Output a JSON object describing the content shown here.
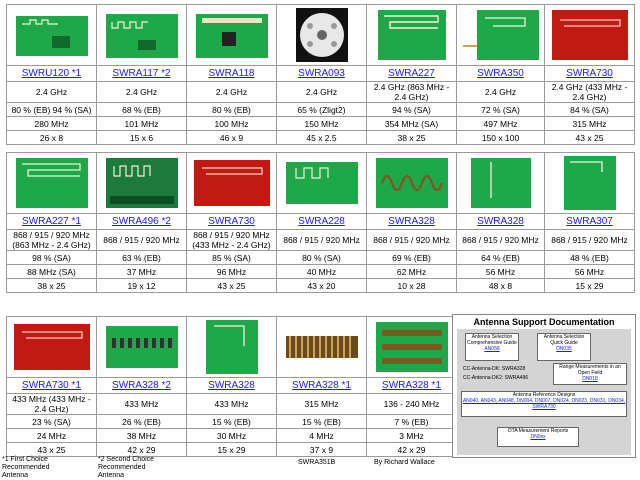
{
  "colors": {
    "pcb_green": "#1fa84a",
    "pcb_red": "#c21a12",
    "link": "#1a1aff"
  },
  "rows": [
    [
      {
        "name": "SWRU120 *1",
        "freq": "2.4 GHz",
        "eff": "80 % (EB) 94 % (SA)",
        "bw": "280 MHz",
        "size": "26 x 8",
        "image": "green-pcb-antenna"
      },
      {
        "name": "SWRA117 *2",
        "freq": "2.4 GHz",
        "eff": "68 % (EB)",
        "bw": "101 MHz",
        "size": "15 x 6",
        "image": "green-pcb-antenna"
      },
      {
        "name": "SWRA118",
        "freq": "2.4 GHz",
        "eff": "80 % (EB)",
        "bw": "100 MHz",
        "size": "46 x 9",
        "image": "green-pcb-antenna"
      },
      {
        "name": "SWRA093",
        "freq": "2.4 GHz",
        "eff": "65 % (Zligt2)",
        "bw": "150 MHz",
        "size": "45 x 2.5",
        "image": "osram-light-board"
      },
      {
        "name": "SWRA227",
        "freq": "2.4 GHz (863 MHz - 2.4 GHz)",
        "eff": "94 % (SA)",
        "bw": "354 MHz (SA)",
        "size": "38 x 25",
        "image": "green-pcb-antenna"
      },
      {
        "name": "SWRA350",
        "freq": "2.4 GHz",
        "eff": "72 % (SA)",
        "bw": "497 MHz",
        "size": "150 x 100",
        "image": "green-pcb-antenna"
      },
      {
        "name": "SWRA730",
        "freq": "2.4 GHz (433 MHz - 2.4 GHz)",
        "eff": "84 % (SA)",
        "bw": "315 MHz",
        "size": "43 x 25",
        "image": "red-pcb-antenna"
      }
    ],
    [
      {
        "name": "SWRA227 *1",
        "freq": "868 / 915 / 920 MHz (863 MHz - 2.4 GHz)",
        "eff": "98 % (SA)",
        "bw": "88 MHz (SA)",
        "size": "38 x 25",
        "image": "green-pcb-antenna"
      },
      {
        "name": "SWRA496 *2",
        "freq": "868 / 915 / 920 MHz",
        "eff": "63 % (EB)",
        "bw": "37 MHz",
        "size": "19 x 12",
        "image": "antenna-match-board"
      },
      {
        "name": "SWRA730",
        "freq": "868 / 915 / 920 MHz (433 MHz - 2.4 GHz)",
        "eff": "85 % (SA)",
        "bw": "96 MHz",
        "size": "43 x 25",
        "image": "red-pcb-antenna"
      },
      {
        "name": "SWRA228",
        "freq": "868 / 915 / 920 MHz",
        "eff": "80 % (SA)",
        "bw": "40 MHz",
        "size": "43 x 20",
        "image": "green-pcb-antenna"
      },
      {
        "name": "SWRA328",
        "freq": "868 / 915 / 920 MHz",
        "eff": "69 % (EB)",
        "bw": "62 MHz",
        "size": "10 x 28",
        "image": "helix-wire-antenna"
      },
      {
        "name": "SWRA328",
        "freq": "868 / 915 / 920 MHz",
        "eff": "64 % (EB)",
        "bw": "56 MHz",
        "size": "48 x 8",
        "image": "green-pcb-antenna"
      },
      {
        "name": "SWRA307",
        "freq": "868 / 915 / 920 MHz",
        "eff": "48 % (EB)",
        "bw": "56 MHz",
        "size": "15 x 29",
        "image": "green-pcb-antenna"
      }
    ],
    [
      {
        "name": "SWRA730 *1",
        "freq": "433 MHz (433 MHz - 2.4 GHz)",
        "eff": "23 % (SA)",
        "bw": "24 MHz",
        "size": "43 x 25",
        "image": "red-pcb-antenna"
      },
      {
        "name": "SWRA328 *2",
        "freq": "433 MHz",
        "eff": "26 % (EB)",
        "bw": "38 MHz",
        "size": "42 x 29",
        "image": "chip-array-board"
      },
      {
        "name": "SWRA328",
        "freq": "433 MHz",
        "eff": "15 % (EB)",
        "bw": "30 MHz",
        "size": "15 x 29",
        "image": "green-pcb-antenna"
      },
      {
        "name": "SWRA328 *1",
        "freq": "315 MHz",
        "eff": "15 % (EB)",
        "bw": "4 MHz",
        "size": "37 x 9",
        "image": "coil-antenna"
      },
      {
        "name": "SWRA328 *1",
        "freq": "136 - 240 MHz",
        "eff": "7 % (EB)",
        "bw": "3 MHz",
        "size": "42 x 29",
        "image": "chip-array-board"
      }
    ]
  ],
  "doc": {
    "title": "Antenna Support Documentation",
    "box1": "Antenna Selection Comprehensive Guide",
    "box1_link": "AN058",
    "box2": "Antenna Selection Quick Guide",
    "box2_link": "DN035",
    "dk1": "CC-Antenna-DK: SWRA328",
    "dk2": "CC-Antenna-DK2: SWRA496",
    "range": "Range Measurements in an Open Field",
    "range_link": "DN018",
    "ref_title": "Antenna Reference Designs",
    "ref_links": "AN040, AN043, AN048, DN004, DN007, DN024, DN023, DN031, DN034, SWRA730",
    "ota": "OTA Measurement Reports",
    "ota_link": "DN0xx"
  },
  "footer": {
    "note1": "*1 First Choice Recommended Antenna",
    "note2": "*2 Second Choice Recommended Antenna",
    "docid": "SWRA351B",
    "author": "By Richard Wallace"
  }
}
